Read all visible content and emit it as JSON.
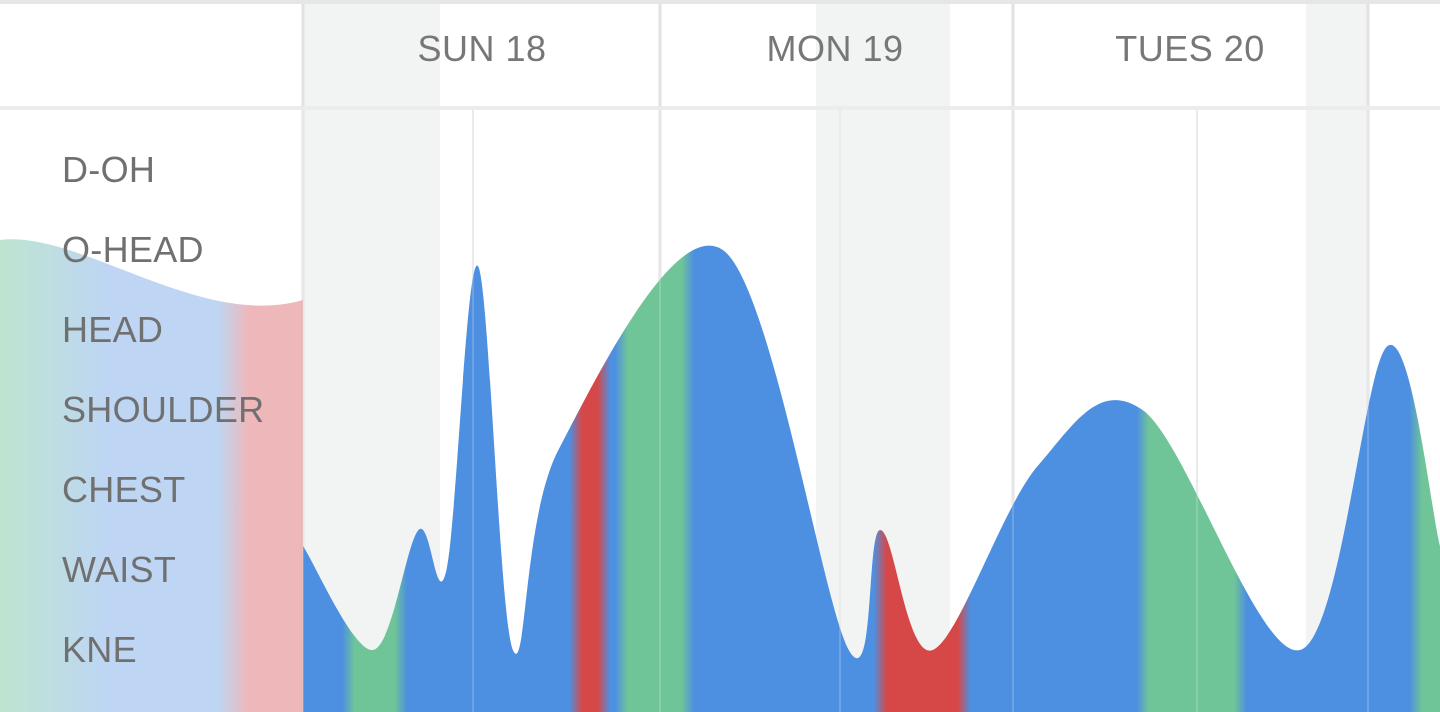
{
  "chart_data": {
    "type": "area",
    "x_header": [
      "SUN 18",
      "MON 19",
      "TUES 20"
    ],
    "y_categories": [
      "D-OH",
      "O-HEAD",
      "HEAD",
      "SHOULDER",
      "CHEST",
      "WAIST",
      "KNE"
    ],
    "series_colors": {
      "blue": "#4d8fe0",
      "green": "#6fc598",
      "red": "#d64848"
    },
    "curve": [
      {
        "t": 0.0,
        "level": 2.3
      },
      {
        "t": 2.0,
        "level": 1.0
      },
      {
        "t": 3.3,
        "level": 2.5
      },
      {
        "t": 4.1,
        "level": 2.0
      },
      {
        "t": 5.0,
        "level": 5.8
      },
      {
        "t": 6.0,
        "level": 1.0
      },
      {
        "t": 7.3,
        "level": 3.5
      },
      {
        "t": 12.0,
        "level": 6.0
      },
      {
        "t": 15.6,
        "level": 1.0
      },
      {
        "t": 16.5,
        "level": 2.5
      },
      {
        "t": 18.0,
        "level": 1.0
      },
      {
        "t": 21.0,
        "level": 3.3
      },
      {
        "t": 24.0,
        "level": 4.0
      },
      {
        "t": 28.5,
        "level": 1.0
      },
      {
        "t": 31.0,
        "level": 4.8
      },
      {
        "t": 32.5,
        "level": 2.3
      }
    ],
    "color_segments": [
      {
        "from": 0.0,
        "to": 1.3,
        "color": "blue"
      },
      {
        "from": 1.3,
        "to": 2.8,
        "color": "green"
      },
      {
        "from": 2.8,
        "to": 7.8,
        "color": "blue"
      },
      {
        "from": 7.8,
        "to": 8.6,
        "color": "red"
      },
      {
        "from": 8.6,
        "to": 9.1,
        "color": "blue"
      },
      {
        "from": 9.1,
        "to": 11.0,
        "color": "green"
      },
      {
        "from": 11.0,
        "to": 16.5,
        "color": "blue"
      },
      {
        "from": 16.5,
        "to": 18.9,
        "color": "red"
      },
      {
        "from": 18.9,
        "to": 24.0,
        "color": "blue"
      },
      {
        "from": 24.0,
        "to": 26.8,
        "color": "green"
      },
      {
        "from": 26.8,
        "to": 31.8,
        "color": "blue"
      },
      {
        "from": 31.8,
        "to": 32.5,
        "color": "green"
      }
    ],
    "grid": true
  }
}
